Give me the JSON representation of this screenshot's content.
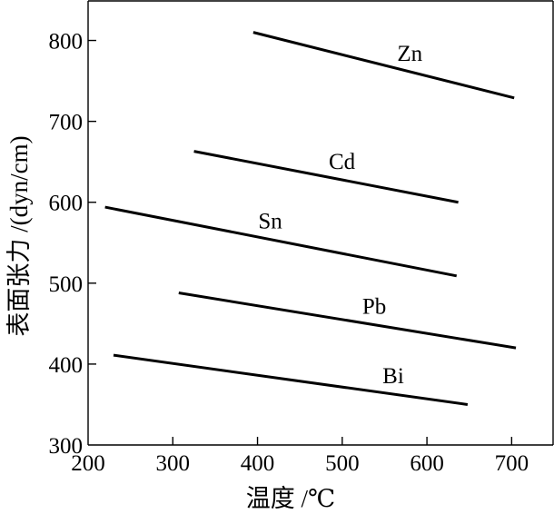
{
  "chart_data": {
    "type": "line",
    "xlabel": "温度 /℃",
    "ylabel": "表面张力 /(dyn/cm)",
    "xlim": [
      200,
      750
    ],
    "ylim": [
      300,
      850
    ],
    "xticks": [
      200,
      300,
      400,
      500,
      600,
      700
    ],
    "yticks": [
      300,
      400,
      500,
      600,
      700,
      800
    ],
    "grid": false,
    "series": [
      {
        "name": "Zn",
        "x": [
          395,
          703
        ],
        "y": [
          810,
          729
        ]
      },
      {
        "name": "Cd",
        "x": [
          325,
          637
        ],
        "y": [
          663,
          600
        ]
      },
      {
        "name": "Sn",
        "x": [
          220,
          635
        ],
        "y": [
          594,
          509
        ]
      },
      {
        "name": "Pb",
        "x": [
          307,
          705
        ],
        "y": [
          488,
          420
        ]
      },
      {
        "name": "Bi",
        "x": [
          230,
          648
        ],
        "y": [
          411,
          350
        ]
      }
    ]
  }
}
